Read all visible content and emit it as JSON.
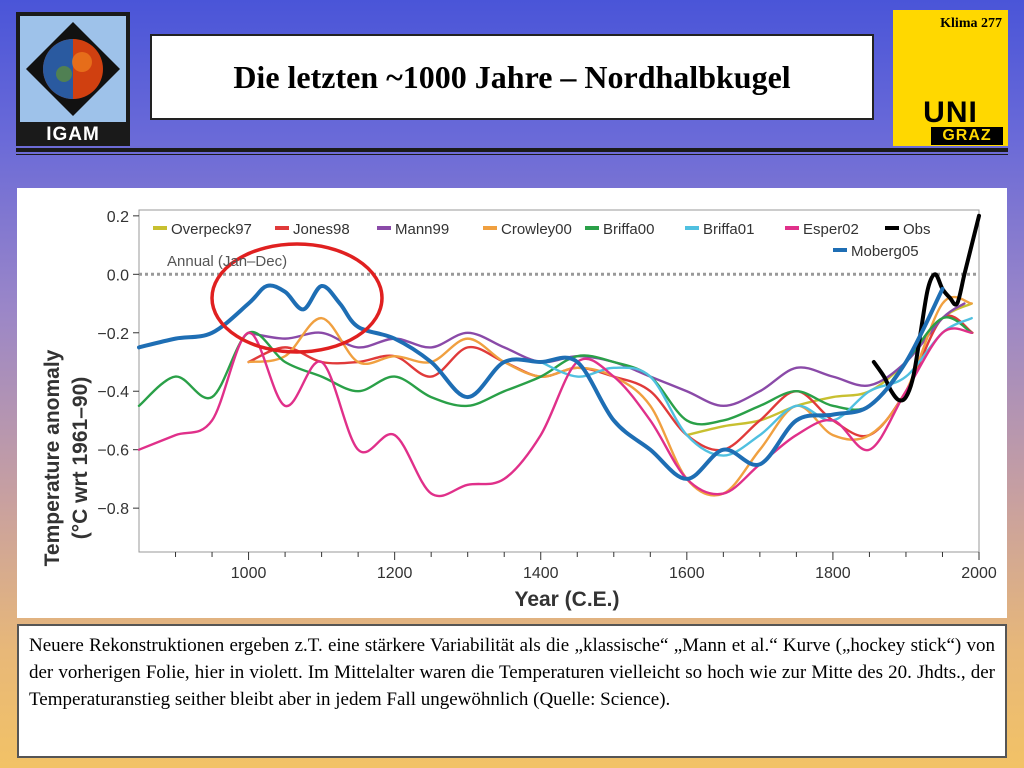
{
  "header": {
    "title": "Die letzten ~1000 Jahre – Nordhalbkugel",
    "slide_label": "Klima  277",
    "logo_left_text": "IGAM",
    "logo_right_top": "UNI",
    "logo_right_bottom": "GRAZ"
  },
  "caption": "Neuere Rekonstruktionen ergeben z.T. eine stärkere Variabilität als die „klassische“ „Mann et al.“ Kurve („hockey stick“) von der vorherigen Folie, hier in violett. Im Mittelalter waren die Temperaturen vielleicht so hoch wie zur Mitte des 20. Jhdts., der Temperaturanstieg seither bleibt aber in jedem Fall ungewöhnlich (Quelle: Science).",
  "colors": {
    "Overpeck97": "#c8c030",
    "Jones98": "#e03a3a",
    "Mann99": "#8a4aa8",
    "Crowley00": "#f0a040",
    "Briffa00": "#2aa048",
    "Briffa01": "#50c0e0",
    "Esper02": "#e0308a",
    "Obs": "#000000",
    "Moberg05": "#1e6eb4",
    "circle": "#e02020"
  },
  "chart_data": {
    "type": "line",
    "xlabel": "Year (C.E.)",
    "ylabel": "Temperature anomaly",
    "ylabel2": "(°C wrt 1961–90)",
    "annotation": "Annual (Jan–Dec)",
    "xlim": [
      850,
      2000
    ],
    "ylim": [
      -0.95,
      0.22
    ],
    "xticks": [
      1000,
      1200,
      1400,
      1600,
      1800,
      2000
    ],
    "xtick_labels": [
      "1000",
      "1200",
      "1400",
      "1600",
      "1800",
      "2000"
    ],
    "yticks": [
      0.2,
      0.0,
      -0.2,
      -0.4,
      -0.6,
      -0.8
    ],
    "ytick_labels": [
      "0.2",
      "0.0",
      "−0.2",
      "−0.4",
      "−0.6",
      "−0.8"
    ],
    "zero_line": 0.0,
    "legend_placement": "top",
    "series": [
      {
        "name": "Overpeck97",
        "x": [
          1600,
          1650,
          1700,
          1750,
          1800,
          1850,
          1900,
          1950,
          1990
        ],
        "y": [
          -0.55,
          -0.52,
          -0.5,
          -0.45,
          -0.42,
          -0.4,
          -0.3,
          -0.15,
          -0.1
        ]
      },
      {
        "name": "Jones98",
        "x": [
          1000,
          1050,
          1100,
          1150,
          1200,
          1250,
          1300,
          1350,
          1400,
          1450,
          1500,
          1550,
          1600,
          1650,
          1700,
          1750,
          1800,
          1850,
          1900,
          1950,
          1991
        ],
        "y": [
          -0.3,
          -0.25,
          -0.3,
          -0.3,
          -0.28,
          -0.35,
          -0.25,
          -0.3,
          -0.35,
          -0.32,
          -0.35,
          -0.4,
          -0.55,
          -0.6,
          -0.5,
          -0.4,
          -0.5,
          -0.55,
          -0.4,
          -0.15,
          -0.2
        ]
      },
      {
        "name": "Mann99",
        "x": [
          1000,
          1050,
          1100,
          1150,
          1200,
          1250,
          1300,
          1350,
          1400,
          1450,
          1500,
          1550,
          1600,
          1650,
          1700,
          1750,
          1800,
          1850,
          1900,
          1950,
          1980
        ],
        "y": [
          -0.2,
          -0.22,
          -0.2,
          -0.25,
          -0.22,
          -0.25,
          -0.2,
          -0.25,
          -0.3,
          -0.28,
          -0.3,
          -0.35,
          -0.4,
          -0.45,
          -0.4,
          -0.32,
          -0.35,
          -0.38,
          -0.3,
          -0.15,
          -0.1
        ]
      },
      {
        "name": "Crowley00",
        "x": [
          1000,
          1050,
          1100,
          1150,
          1200,
          1250,
          1300,
          1350,
          1400,
          1450,
          1500,
          1550,
          1600,
          1650,
          1700,
          1750,
          1800,
          1850,
          1900,
          1950,
          1990
        ],
        "y": [
          -0.3,
          -0.28,
          -0.15,
          -0.3,
          -0.28,
          -0.3,
          -0.22,
          -0.3,
          -0.35,
          -0.32,
          -0.35,
          -0.45,
          -0.7,
          -0.75,
          -0.6,
          -0.45,
          -0.55,
          -0.55,
          -0.4,
          -0.1,
          -0.1
        ]
      },
      {
        "name": "Briffa00",
        "x": [
          850,
          900,
          950,
          1000,
          1050,
          1100,
          1150,
          1200,
          1250,
          1300,
          1350,
          1400,
          1450,
          1500,
          1550,
          1600,
          1650,
          1700,
          1750,
          1800,
          1850,
          1900,
          1950,
          1990
        ],
        "y": [
          -0.45,
          -0.35,
          -0.42,
          -0.2,
          -0.3,
          -0.35,
          -0.4,
          -0.35,
          -0.42,
          -0.45,
          -0.4,
          -0.35,
          -0.28,
          -0.3,
          -0.35,
          -0.5,
          -0.5,
          -0.45,
          -0.4,
          -0.45,
          -0.45,
          -0.3,
          -0.15,
          -0.2
        ]
      },
      {
        "name": "Briffa01",
        "x": [
          1400,
          1450,
          1500,
          1550,
          1600,
          1650,
          1700,
          1750,
          1800,
          1850,
          1900,
          1950,
          1990
        ],
        "y": [
          -0.3,
          -0.35,
          -0.32,
          -0.35,
          -0.55,
          -0.62,
          -0.55,
          -0.45,
          -0.5,
          -0.4,
          -0.35,
          -0.2,
          -0.15
        ]
      },
      {
        "name": "Esper02",
        "x": [
          850,
          900,
          950,
          1000,
          1050,
          1100,
          1150,
          1200,
          1250,
          1300,
          1350,
          1400,
          1450,
          1500,
          1550,
          1600,
          1650,
          1700,
          1750,
          1800,
          1850,
          1900,
          1950,
          1990
        ],
        "y": [
          -0.6,
          -0.55,
          -0.5,
          -0.2,
          -0.45,
          -0.3,
          -0.6,
          -0.55,
          -0.75,
          -0.72,
          -0.7,
          -0.55,
          -0.3,
          -0.35,
          -0.5,
          -0.7,
          -0.75,
          -0.65,
          -0.55,
          -0.5,
          -0.6,
          -0.4,
          -0.2,
          -0.2
        ]
      },
      {
        "name": "Obs",
        "x": [
          1856,
          1870,
          1880,
          1890,
          1900,
          1910,
          1920,
          1930,
          1940,
          1950,
          1960,
          1970,
          1980,
          1990,
          2000
        ],
        "y": [
          -0.3,
          -0.35,
          -0.4,
          -0.43,
          -0.42,
          -0.35,
          -0.2,
          -0.05,
          0.0,
          -0.05,
          -0.08,
          -0.1,
          0.0,
          0.1,
          0.2
        ]
      },
      {
        "name": "Moberg05",
        "x": [
          850,
          900,
          950,
          1000,
          1025,
          1050,
          1075,
          1100,
          1125,
          1150,
          1200,
          1250,
          1300,
          1350,
          1400,
          1450,
          1500,
          1550,
          1600,
          1650,
          1700,
          1750,
          1800,
          1850,
          1900,
          1950
        ],
        "y": [
          -0.25,
          -0.22,
          -0.2,
          -0.1,
          -0.04,
          -0.06,
          -0.12,
          -0.04,
          -0.1,
          -0.18,
          -0.22,
          -0.3,
          -0.42,
          -0.3,
          -0.3,
          -0.3,
          -0.5,
          -0.6,
          -0.7,
          -0.6,
          -0.65,
          -0.5,
          -0.48,
          -0.45,
          -0.3,
          -0.05
        ]
      }
    ]
  }
}
